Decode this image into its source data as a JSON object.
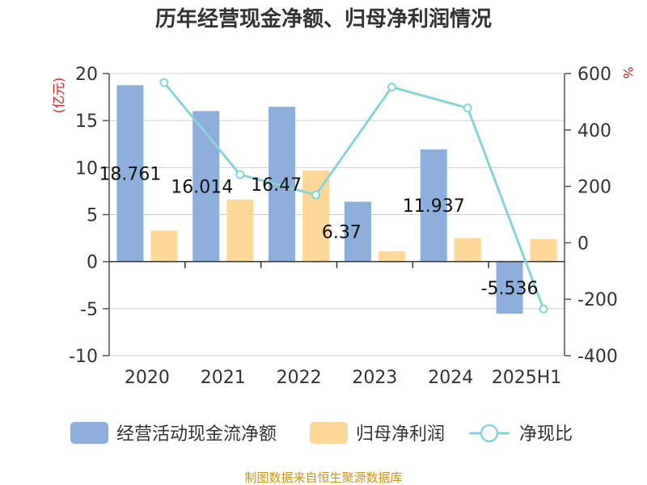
{
  "chart_data": {
    "type": "bar",
    "title": "历年经营现金净额、归母净利润情况",
    "categories": [
      "2020",
      "2021",
      "2022",
      "2023",
      "2024",
      "2025H1"
    ],
    "y_left": {
      "unit": "(亿元)",
      "range": [
        -10,
        20
      ],
      "ticks": [
        "20",
        "15",
        "10",
        "5",
        "0",
        "-5",
        "-10"
      ]
    },
    "y_right": {
      "unit": "%",
      "range": [
        -400,
        600
      ],
      "ticks": [
        "600",
        "400",
        "200",
        "0",
        "-200",
        "-400"
      ]
    },
    "grid": true,
    "legend_position": "bottom",
    "series": [
      {
        "name": "经营活动现金流净额",
        "kind": "bar",
        "axis": "left",
        "color": "#8eaedb",
        "values": [
          18.761,
          16.014,
          16.47,
          6.37,
          11.937,
          -5.536
        ],
        "labels": [
          "18.761",
          "16.014",
          "16.47",
          "6.37",
          "11.937",
          "-5.536"
        ]
      },
      {
        "name": "归母净利润",
        "kind": "bar",
        "axis": "left",
        "color": "#fdd899",
        "values": [
          3.3,
          6.6,
          9.7,
          1.1,
          2.5,
          2.4
        ]
      },
      {
        "name": "净现比",
        "kind": "line",
        "axis": "right",
        "color": "#8ad3d8",
        "values": [
          568,
          242,
          170,
          552,
          478,
          -235
        ]
      }
    ],
    "source": "制图数据来自恒生聚源数据库"
  }
}
